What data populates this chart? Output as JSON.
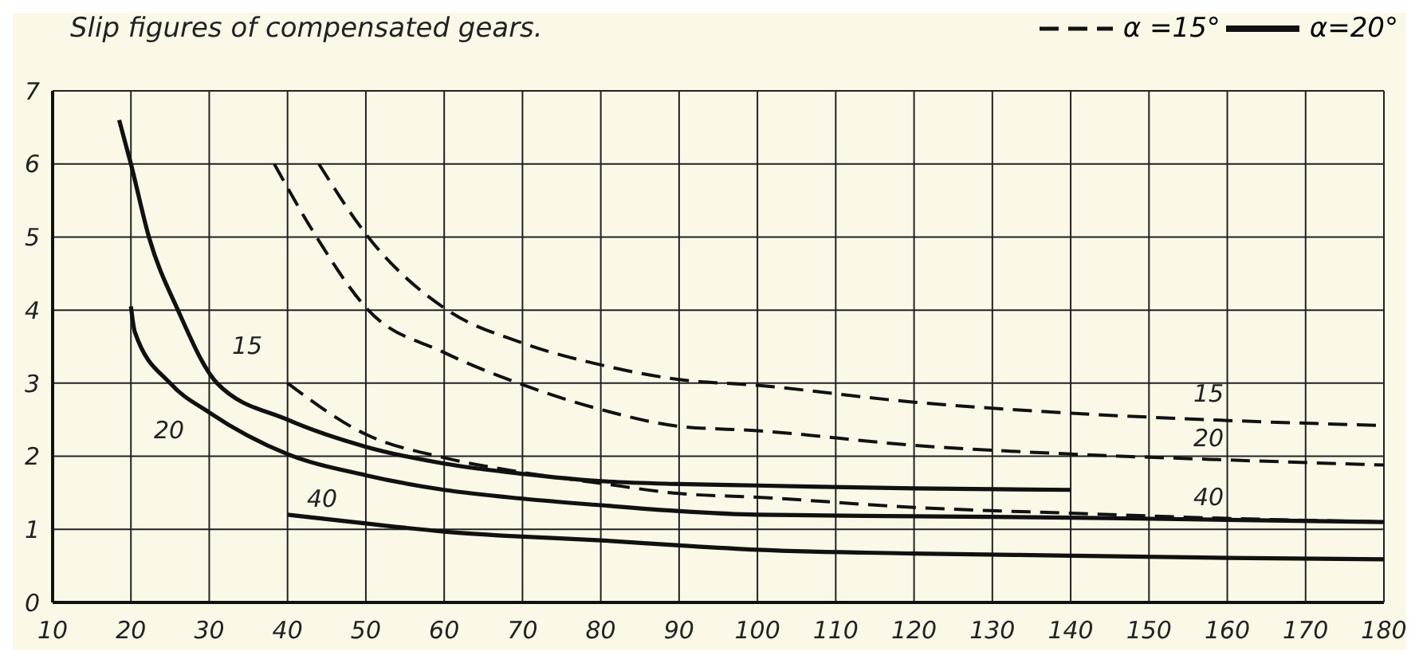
{
  "chart_data": {
    "type": "line",
    "title": "Slip figures of compensated gears.",
    "xlim": [
      10,
      180
    ],
    "ylim": [
      0,
      7
    ],
    "xticks": [
      10,
      20,
      30,
      40,
      50,
      60,
      70,
      80,
      90,
      100,
      110,
      120,
      130,
      140,
      150,
      160,
      170,
      180
    ],
    "yticks": [
      0,
      1,
      2,
      3,
      4,
      5,
      6,
      7
    ],
    "grid": true,
    "legend": "top right",
    "marker": "none",
    "series": [
      {
        "name": "α =15°",
        "color": "#111111",
        "line_style": "dashed",
        "x": [
          44,
          50.3,
          60.4,
          70,
          80,
          90,
          100,
          120,
          140,
          160,
          180
        ],
        "values": [
          6,
          5,
          4,
          3.55,
          3.25,
          3.05,
          2.97,
          2.74,
          2.59,
          2.49,
          2.42
        ]
      },
      {
        "color": "#111111",
        "line_style": "dashed",
        "x": [
          38.3,
          43.7,
          50.3,
          60,
          70,
          80,
          90,
          100,
          120,
          140,
          160,
          180
        ],
        "values": [
          6,
          5,
          4,
          3.42,
          2.98,
          2.64,
          2.41,
          2.35,
          2.15,
          2.03,
          1.95,
          1.88
        ]
      },
      {
        "color": "#111111",
        "line_style": "dashed",
        "x": [
          40,
          50,
          60,
          70,
          80,
          90,
          100,
          120,
          140,
          160,
          180
        ],
        "values": [
          3,
          2.3,
          1.98,
          1.78,
          1.63,
          1.49,
          1.44,
          1.3,
          1.22,
          1.15,
          1.1
        ]
      },
      {
        "name": "α=20°",
        "color": "#111111",
        "line_style": "solid",
        "x": [
          18.5,
          20,
          22.3,
          26,
          31,
          40,
          50,
          60,
          70,
          80,
          90,
          100,
          120,
          140
        ],
        "values": [
          6.6,
          6,
          5,
          4,
          3,
          2.5,
          2.13,
          1.9,
          1.76,
          1.66,
          1.62,
          1.6,
          1.56,
          1.54
        ]
      },
      {
        "color": "#111111",
        "line_style": "solid",
        "x": [
          20,
          20.5,
          25,
          30,
          40,
          50,
          60,
          70,
          80,
          90,
          100,
          120,
          140,
          160,
          180
        ],
        "values": [
          4.05,
          3.7,
          3,
          2.6,
          2.03,
          1.74,
          1.54,
          1.42,
          1.33,
          1.25,
          1.2,
          1.18,
          1.16,
          1.13,
          1.1
        ]
      },
      {
        "color": "#111111",
        "line_style": "solid",
        "x": [
          40,
          50,
          60,
          70,
          80,
          90,
          100,
          120,
          140,
          160,
          180
        ],
        "values": [
          1.2,
          1.08,
          0.97,
          0.9,
          0.85,
          0.78,
          0.72,
          0.67,
          0.64,
          0.61,
          0.59
        ]
      }
    ],
    "annotations": [
      "15",
      "20",
      "40",
      "15",
      "20",
      "40"
    ]
  }
}
